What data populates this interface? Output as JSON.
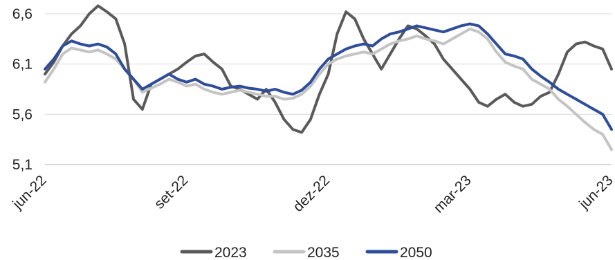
{
  "chart_data": {
    "type": "line",
    "title": "",
    "xlabel": "",
    "ylabel": "",
    "x_tick_labels": [
      "jun-22",
      "set-22",
      "dez-22",
      "mar-23",
      "jun-23"
    ],
    "y_ticks": [
      "5,1",
      "5,6",
      "6,1",
      "6,6"
    ],
    "ylim": [
      5.1,
      6.6
    ],
    "grid": "horizontal",
    "legend_placement": "bottom",
    "points_per_series": 65,
    "series": [
      {
        "name": "2023",
        "color": "#5a5a5a",
        "values": [
          6.0,
          6.12,
          6.28,
          6.4,
          6.48,
          6.6,
          6.68,
          6.62,
          6.55,
          6.3,
          5.75,
          5.65,
          5.9,
          5.95,
          6.0,
          6.05,
          6.12,
          6.18,
          6.2,
          6.12,
          6.05,
          5.88,
          5.85,
          5.8,
          5.75,
          5.85,
          5.72,
          5.55,
          5.45,
          5.42,
          5.55,
          5.8,
          6.0,
          6.4,
          6.62,
          6.55,
          6.35,
          6.2,
          6.05,
          6.2,
          6.35,
          6.48,
          6.45,
          6.38,
          6.3,
          6.15,
          6.05,
          5.95,
          5.85,
          5.72,
          5.68,
          5.75,
          5.8,
          5.72,
          5.68,
          5.7,
          5.78,
          5.82,
          6.0,
          6.22,
          6.3,
          6.32,
          6.28,
          6.25,
          6.05
        ]
      },
      {
        "name": "2035",
        "color": "#c4c4c4",
        "values": [
          5.92,
          6.05,
          6.2,
          6.26,
          6.24,
          6.22,
          6.24,
          6.2,
          6.15,
          6.05,
          5.95,
          5.82,
          5.86,
          5.9,
          5.95,
          5.92,
          5.88,
          5.9,
          5.85,
          5.82,
          5.8,
          5.82,
          5.84,
          5.82,
          5.8,
          5.78,
          5.78,
          5.75,
          5.76,
          5.8,
          5.88,
          6.0,
          6.1,
          6.15,
          6.18,
          6.2,
          6.22,
          6.2,
          6.25,
          6.3,
          6.33,
          6.35,
          6.38,
          6.35,
          6.33,
          6.3,
          6.35,
          6.4,
          6.45,
          6.42,
          6.35,
          6.22,
          6.12,
          6.08,
          6.05,
          5.95,
          5.9,
          5.85,
          5.75,
          5.68,
          5.6,
          5.52,
          5.45,
          5.4,
          5.25
        ]
      },
      {
        "name": "2050",
        "color": "#2e4d9a",
        "values": [
          6.05,
          6.15,
          6.28,
          6.33,
          6.3,
          6.28,
          6.3,
          6.27,
          6.2,
          6.05,
          5.95,
          5.85,
          5.9,
          5.95,
          6.0,
          5.95,
          5.92,
          5.95,
          5.9,
          5.88,
          5.85,
          5.87,
          5.88,
          5.86,
          5.85,
          5.83,
          5.85,
          5.82,
          5.8,
          5.84,
          5.92,
          6.05,
          6.15,
          6.2,
          6.25,
          6.28,
          6.3,
          6.28,
          6.35,
          6.4,
          6.42,
          6.45,
          6.48,
          6.46,
          6.44,
          6.42,
          6.45,
          6.48,
          6.5,
          6.48,
          6.4,
          6.3,
          6.2,
          6.18,
          6.15,
          6.05,
          5.98,
          5.92,
          5.85,
          5.8,
          5.75,
          5.7,
          5.65,
          5.6,
          5.45
        ]
      }
    ]
  }
}
